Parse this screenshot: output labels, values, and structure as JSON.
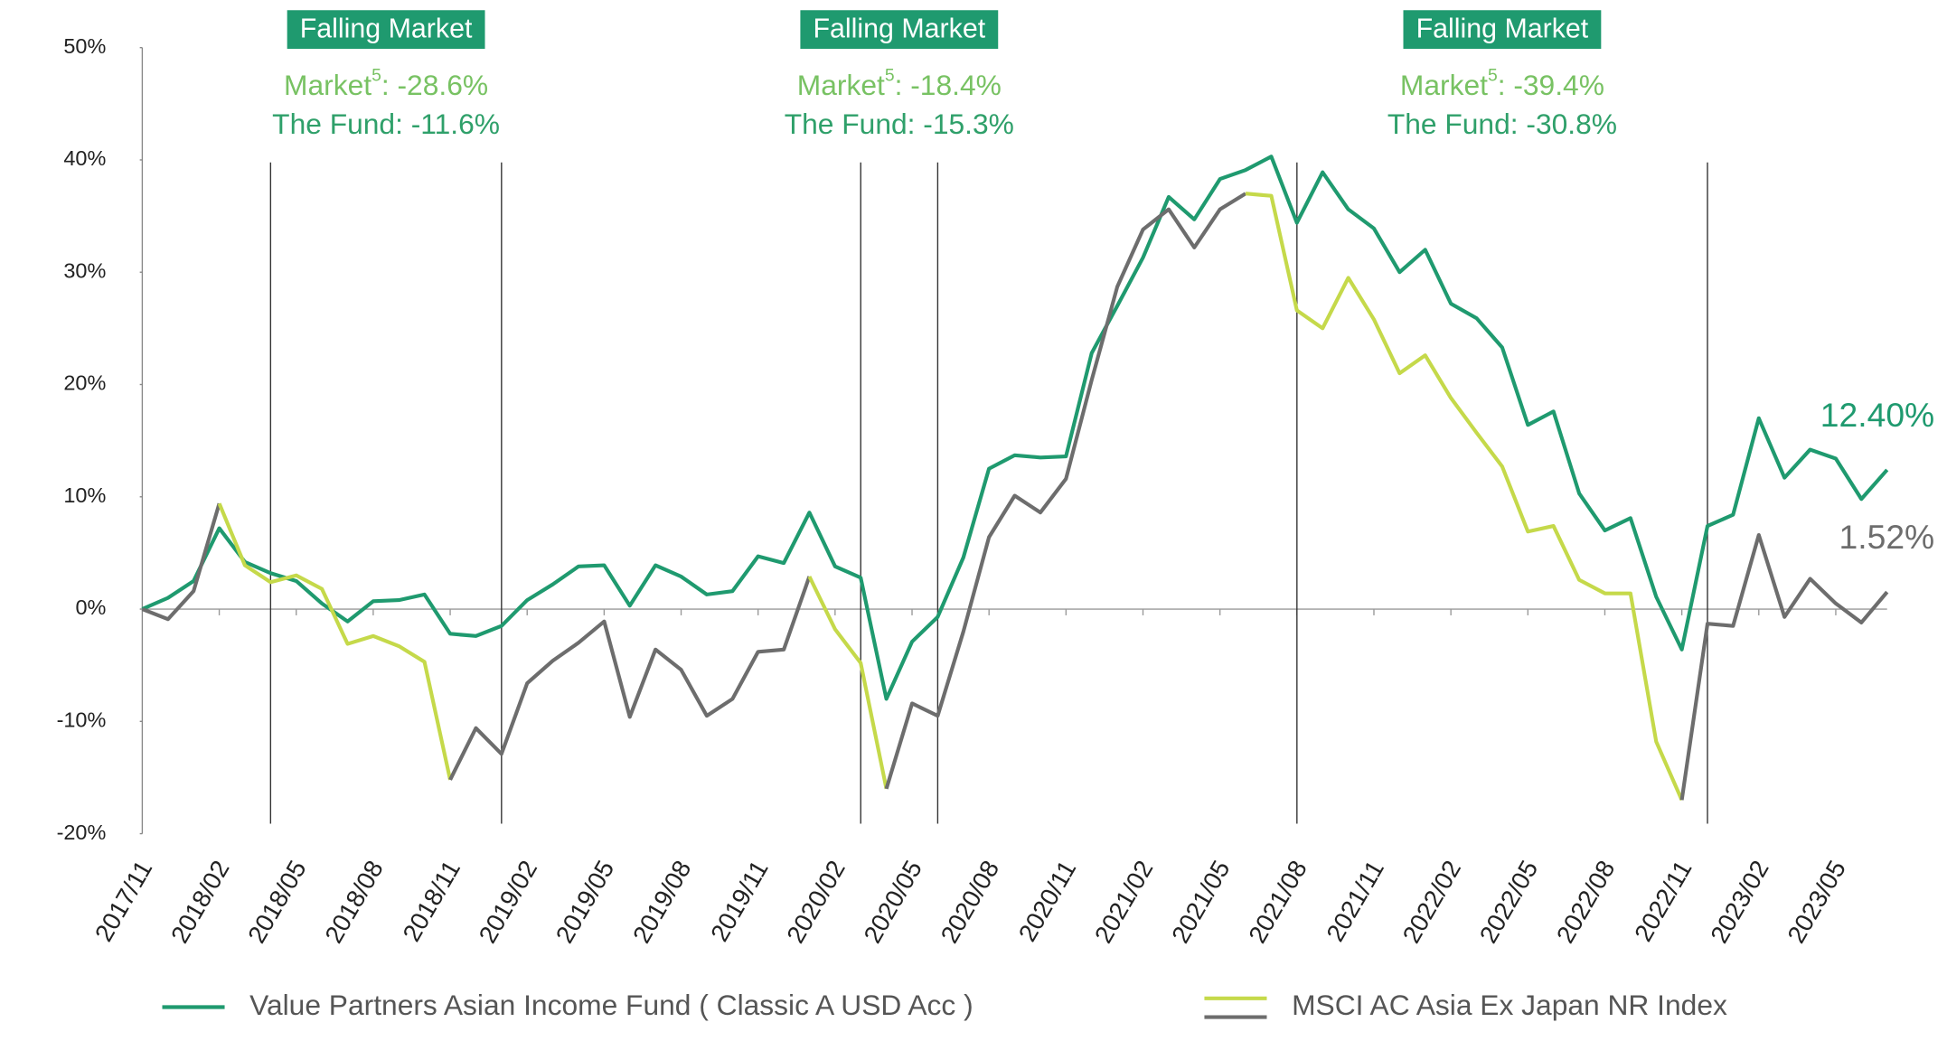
{
  "chart_data": {
    "type": "line",
    "categories": [
      "2017/11",
      null,
      null,
      "2018/02",
      null,
      null,
      "2018/05",
      null,
      null,
      "2018/08",
      null,
      null,
      "2018/11",
      null,
      null,
      "2019/02",
      null,
      null,
      "2019/05",
      null,
      null,
      "2019/08",
      null,
      null,
      "2019/11",
      null,
      null,
      "2020/02",
      null,
      null,
      "2020/05",
      null,
      null,
      "2020/08",
      null,
      null,
      "2020/11",
      null,
      null,
      "2021/02",
      null,
      null,
      "2021/05",
      null,
      null,
      "2021/08",
      null,
      null,
      "2021/11",
      null,
      null,
      "2022/02",
      null,
      null,
      "2022/05",
      null,
      null,
      "2022/08",
      null,
      null,
      "2022/11",
      null,
      null,
      "2023/02",
      null,
      null,
      "2023/05",
      null,
      null
    ],
    "series": [
      {
        "name": "Value Partners Asian Income Fund ( Classic A USD  Acc )",
        "color": "#1f9a6f",
        "values": [
          0,
          1.0,
          2.5,
          7.2,
          4.2,
          3.2,
          2.5,
          0.5,
          -1.1,
          0.7,
          0.8,
          1.3,
          -2.2,
          -2.4,
          -1.5,
          0.8,
          2.2,
          3.8,
          3.9,
          0.3,
          3.9,
          2.9,
          1.3,
          1.6,
          4.7,
          4.1,
          8.6,
          3.8,
          2.8,
          -8.0,
          -2.9,
          -0.7,
          4.6,
          12.5,
          13.7,
          13.5,
          13.6,
          22.8,
          27.0,
          31.3,
          36.7,
          34.7,
          38.3,
          39.1,
          40.3,
          34.4,
          38.9,
          35.6,
          33.9,
          30.0,
          32.0,
          27.2,
          25.9,
          23.3,
          16.4,
          17.6,
          10.3,
          7.0,
          8.1,
          1.1,
          -3.6,
          7.4,
          8.4,
          17.0,
          11.7,
          14.2,
          13.4,
          9.8,
          12.4
        ],
        "value_labels": [
          null,
          null,
          null,
          null,
          null,
          null,
          null,
          null,
          null,
          null,
          null,
          null,
          null,
          null,
          null,
          null,
          null,
          null,
          null,
          null,
          null,
          null,
          null,
          null,
          null,
          null,
          null,
          null,
          null,
          null,
          null,
          null,
          null,
          null,
          null,
          null,
          null,
          null,
          null,
          null,
          null,
          null,
          null,
          null,
          null,
          null,
          null,
          null,
          null,
          null,
          null,
          null,
          null,
          null,
          null,
          null,
          null,
          null,
          null,
          null,
          null,
          null,
          null,
          null,
          null,
          null,
          null,
          null,
          "12.40%"
        ]
      },
      {
        "name": "MSCI AC Asia Ex Japan NR Index",
        "color": "#6d6d6d",
        "falling_color": "#c5d94a",
        "falling_segments": [
          [
            3,
            12
          ],
          [
            26,
            29
          ],
          [
            43,
            60
          ]
        ],
        "values": [
          0,
          -0.9,
          1.6,
          9.4,
          3.9,
          2.4,
          3.0,
          1.8,
          -3.1,
          -2.4,
          -3.3,
          -4.7,
          -15.2,
          -10.6,
          -12.9,
          -6.6,
          -4.6,
          -3.0,
          -1.1,
          -9.6,
          -3.6,
          -5.4,
          -9.5,
          -8.0,
          -3.8,
          -3.6,
          2.9,
          -1.8,
          -4.8,
          -16.0,
          -8.4,
          -9.5,
          -2.0,
          6.4,
          10.1,
          8.6,
          11.6,
          20.4,
          28.7,
          33.8,
          35.6,
          32.2,
          35.6,
          37.0,
          36.8,
          26.6,
          25.0,
          29.5,
          25.8,
          21.0,
          22.6,
          18.8,
          15.7,
          12.7,
          6.9,
          7.4,
          2.6,
          1.4,
          1.4,
          -11.8,
          -17.0,
          -1.3,
          -1.5,
          6.6,
          -0.7,
          2.7,
          0.5,
          -1.2,
          1.52
        ],
        "value_labels": [
          null,
          null,
          null,
          null,
          null,
          null,
          null,
          null,
          null,
          null,
          null,
          null,
          null,
          null,
          null,
          null,
          null,
          null,
          null,
          null,
          null,
          null,
          null,
          null,
          null,
          null,
          null,
          null,
          null,
          null,
          null,
          null,
          null,
          null,
          null,
          null,
          null,
          null,
          null,
          null,
          null,
          null,
          null,
          null,
          null,
          null,
          null,
          null,
          null,
          null,
          null,
          null,
          null,
          null,
          null,
          null,
          null,
          null,
          null,
          null,
          null,
          null,
          null,
          null,
          null,
          null,
          null,
          null,
          "1.52%"
        ]
      }
    ],
    "ylim": [
      -20,
      50
    ],
    "yticks": [
      {
        "value": -20,
        "label": "-20%"
      },
      {
        "value": -10,
        "label": "-10%"
      },
      {
        "value": 0,
        "label": "0%"
      },
      {
        "value": 10,
        "label": "10%"
      },
      {
        "value": 20,
        "label": "20%"
      },
      {
        "value": 30,
        "label": "30%"
      },
      {
        "value": 40,
        "label": "40%"
      },
      {
        "value": 50,
        "label": "50%"
      }
    ],
    "periods": [
      {
        "label": "Falling Market",
        "market_label": "Market",
        "footnote": "5",
        "market_return": ": -28.6%",
        "fund_label": "The Fund:  -11.6%",
        "start": 5,
        "end": 14
      },
      {
        "label": "Falling Market",
        "market_label": "Market",
        "footnote": "5",
        "market_return": ": -18.4%",
        "fund_label": "The Fund:  -15.3%",
        "start": 28,
        "end": 31
      },
      {
        "label": "Falling Market",
        "market_label": "Market",
        "footnote": "5",
        "market_return": ": -39.4%",
        "fund_label": "The Fund:  -30.8%",
        "start": 45,
        "end": 61
      }
    ],
    "period_color": "#1f9a6f",
    "market_text_color": "#78c263",
    "fund_text_color": "#2fa06a"
  }
}
